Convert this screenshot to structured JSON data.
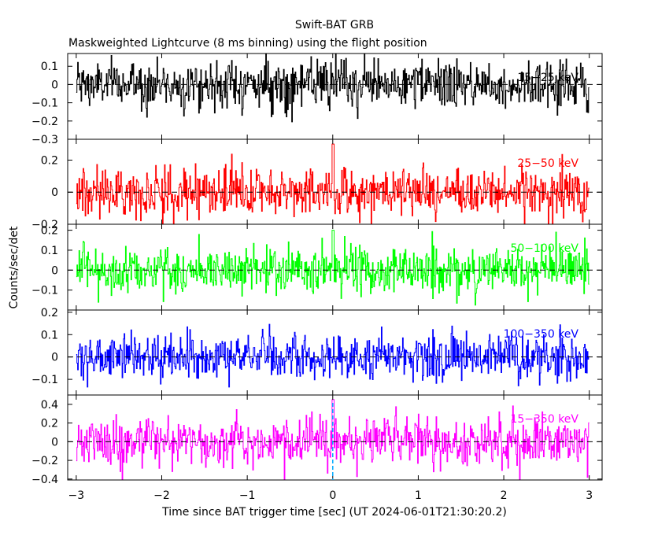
{
  "chart_data": {
    "type": "line",
    "title": "Swift-BAT GRB",
    "subtitle": "Maskweighted Lightcurve (8 ms binning) using the flight position",
    "xlabel": "Time since BAT trigger time [sec] (UT 2024-06-01T21:30:20.2)",
    "ylabel": "Counts/sec/det",
    "xlim": [
      -3.1,
      3.15
    ],
    "x_ticks": [
      -3,
      -2,
      -1,
      0,
      1,
      2,
      3
    ],
    "x_tick_labels": [
      "−3",
      "−2",
      "−1",
      "0",
      "1",
      "2",
      "3"
    ],
    "data_range": [
      -3.0,
      3.0
    ],
    "bin_width": 0.008,
    "trigger_time": 0,
    "panels": [
      {
        "name": "15-25 keV",
        "label": "15−25 keV",
        "color": "#000000",
        "ylim": [
          -0.3,
          0.17
        ],
        "y_ticks": [
          0.1,
          0,
          -0.1,
          -0.2,
          -0.3
        ],
        "y_tick_labels": [
          "0.1",
          "0",
          "−0.1",
          "−0.2",
          "−0.3"
        ],
        "noise_sigma": 0.065,
        "peak": 0.0
      },
      {
        "name": "25-50 keV",
        "label": "25−50 keV",
        "color": "#ff0000",
        "ylim": [
          -0.2,
          0.33
        ],
        "y_ticks": [
          0.2,
          0,
          -0.2
        ],
        "y_tick_labels": [
          "0.2",
          "0",
          "−0.2"
        ],
        "noise_sigma": 0.075,
        "peak": 0.3
      },
      {
        "name": "50-100 keV",
        "label": "50−100 keV",
        "color": "#00ff00",
        "ylim": [
          -0.2,
          0.23
        ],
        "y_ticks": [
          0.2,
          0.1,
          0,
          -0.1
        ],
        "y_tick_labels": [
          "0.2",
          "0.1",
          "0",
          "−0.1"
        ],
        "noise_sigma": 0.06,
        "peak": 0.2
      },
      {
        "name": "100-350 keV",
        "label": "100−350 keV",
        "color": "#0000ff",
        "ylim": [
          -0.17,
          0.21
        ],
        "y_ticks": [
          0.2,
          0.1,
          0,
          -0.1
        ],
        "y_tick_labels": [
          "0.2",
          "0.1",
          "0",
          "−0.1"
        ],
        "noise_sigma": 0.05,
        "peak": 0.0
      },
      {
        "name": "15-350 keV",
        "label": "15−350 keV",
        "color": "#ff00ff",
        "ylim": [
          -0.41,
          0.5
        ],
        "y_ticks": [
          0.4,
          0.2,
          0,
          -0.2,
          -0.4
        ],
        "y_tick_labels": [
          "0.4",
          "0.2",
          "0",
          "−0.2",
          "−0.4"
        ],
        "noise_sigma": 0.13,
        "peak": 0.45
      }
    ],
    "grid": false,
    "legend": "none"
  }
}
